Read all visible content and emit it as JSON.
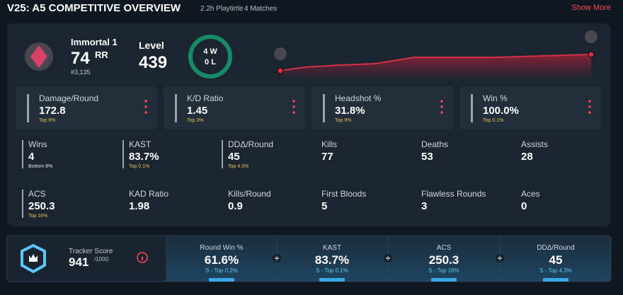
{
  "header": {
    "title": "V25: A5 COMPETITIVE OVERVIEW",
    "playtime": "2.2h Playtime",
    "separator": "//",
    "matches": "4 Matches",
    "show_more": "Show More"
  },
  "rank": {
    "name": "Immortal 1",
    "rr": "74",
    "rr_unit": "RR",
    "position": "#3,135"
  },
  "level": {
    "label": "Level",
    "value": "439"
  },
  "record": {
    "wins": "4 W",
    "losses": "0 L"
  },
  "highlights": [
    {
      "label": "Damage/Round",
      "value": "172.8",
      "rank": "Top 9%"
    },
    {
      "label": "K/D Ratio",
      "value": "1.45",
      "rank": "Top 3%"
    },
    {
      "label": "Headshot %",
      "value": "31.8%",
      "rank": "Top 9%"
    },
    {
      "label": "Win %",
      "value": "100.0%",
      "rank": "Top 0.1%"
    }
  ],
  "stats": [
    {
      "label": "Wins",
      "value": "4",
      "rank": "Bottom 8%"
    },
    {
      "label": "KAST",
      "value": "83.7%",
      "rank": "Top 0.1%"
    },
    {
      "label": "DDΔ/Round",
      "value": "45",
      "rank": "Top 4.3%"
    },
    {
      "label": "Kills",
      "value": "77"
    },
    {
      "label": "Deaths",
      "value": "53"
    },
    {
      "label": "Assists",
      "value": "28"
    },
    {
      "label": "ACS",
      "value": "250.3",
      "rank": "Top 16%"
    },
    {
      "label": "KAD Ratio",
      "value": "1.98"
    },
    {
      "label": "Kills/Round",
      "value": "0.9"
    },
    {
      "label": "First Bloods",
      "value": "5"
    },
    {
      "label": "Flawless Rounds",
      "value": "3"
    },
    {
      "label": "Aces",
      "value": "0"
    }
  ],
  "tracker": {
    "label": "Tracker Score",
    "value": "941",
    "max": "/1000",
    "metrics": [
      {
        "label": "Round Win %",
        "value": "61.6%",
        "rank": "S - Top 0.2%"
      },
      {
        "label": "KAST",
        "value": "83.7%",
        "rank": "S - Top 0.1%"
      },
      {
        "label": "ACS",
        "value": "250.3",
        "rank": "S - Top 16%"
      },
      {
        "label": "DDΔ/Round",
        "value": "45",
        "rank": "S - Top 4.3%"
      }
    ]
  }
}
